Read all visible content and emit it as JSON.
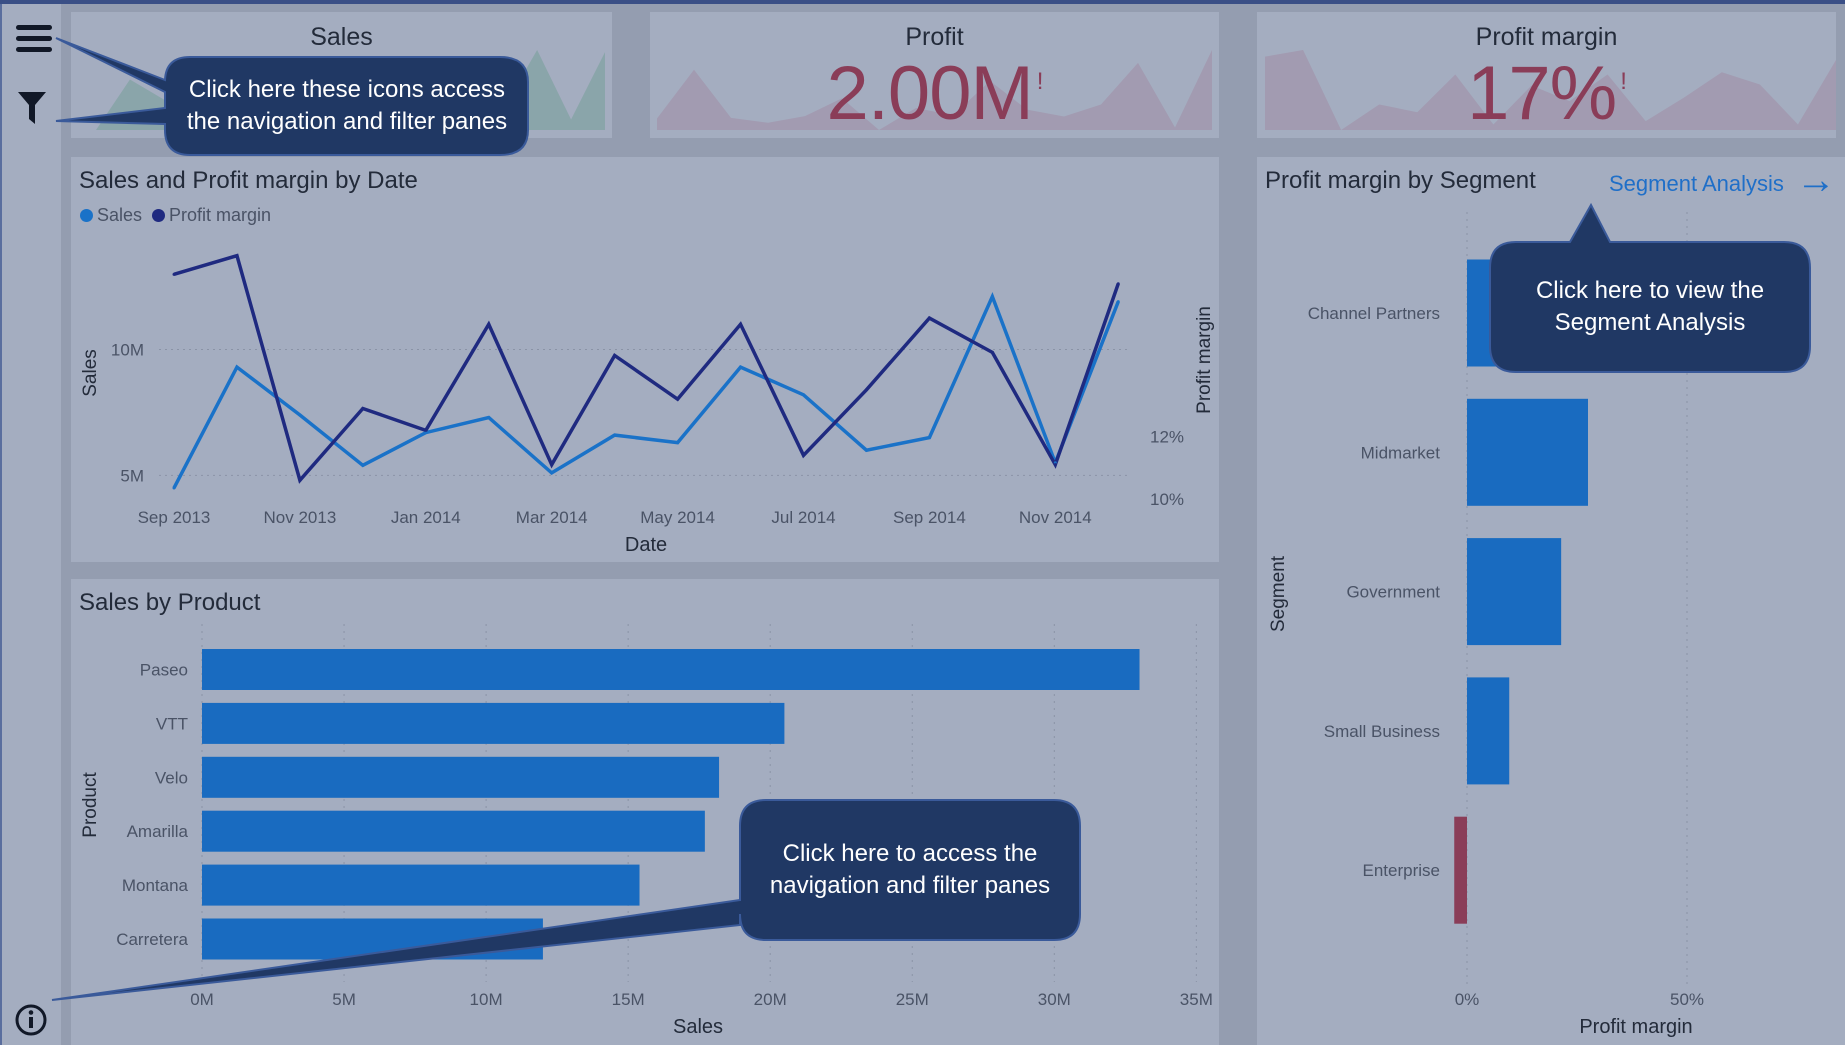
{
  "nav": {
    "menu_icon": "hamburger-menu-icon",
    "filter_icon": "filter-icon",
    "info_icon": "info-icon"
  },
  "kpis": {
    "sales": {
      "title": "Sales",
      "value": ""
    },
    "profit": {
      "title": "Profit",
      "value": "2.00M",
      "alert": "!"
    },
    "profit_margin": {
      "title": "Profit margin",
      "value": "17%",
      "alert": "!"
    }
  },
  "line_panel": {
    "title": "Sales and Profit margin by Date",
    "legend": [
      "Sales",
      "Profit margin"
    ]
  },
  "bar_panel": {
    "title": "Sales by Product"
  },
  "segment_panel": {
    "title": "Profit margin by Segment",
    "link_label": "Segment Analysis",
    "link_icon": "arrow-right-icon"
  },
  "callouts": [
    {
      "text": "Click here these icons access the navigation and filter panes"
    },
    {
      "text": "Click here to view the Segment Analysis"
    },
    {
      "text": "Click here to access the navigation and filter panes"
    }
  ],
  "colors": {
    "sales_line": "#1a72c8",
    "margin_line": "#1f2a80",
    "bar": "#196bc0",
    "negative": "#8a3d58",
    "callout": "#203864"
  },
  "chart_data": [
    {
      "type": "line",
      "x": [
        "Sep 2013",
        "Oct 2013",
        "Nov 2013",
        "Dec 2013",
        "Jan 2014",
        "Feb 2014",
        "Mar 2014",
        "Apr 2014",
        "May 2014",
        "Jun 2014",
        "Jul 2014",
        "Aug 2014",
        "Sep 2014",
        "Oct 2014",
        "Nov 2014",
        "Dec 2014"
      ],
      "x_tick_labels": [
        "Sep 2013",
        "Nov 2013",
        "Jan 2014",
        "Mar 2014",
        "May 2014",
        "Jul 2014",
        "Sep 2014",
        "Nov 2014"
      ],
      "series": [
        {
          "name": "Sales",
          "axis": "left",
          "values": [
            4.5,
            9.3,
            7.4,
            5.4,
            6.7,
            7.3,
            5.1,
            6.6,
            6.3,
            9.3,
            8.2,
            6.0,
            6.5,
            12.1,
            5.5,
            11.9
          ]
        },
        {
          "name": "Profit margin",
          "axis": "right",
          "values": [
            17.2,
            17.8,
            10.6,
            12.9,
            12.2,
            15.6,
            11.1,
            14.6,
            13.2,
            15.6,
            11.4,
            13.5,
            15.8,
            14.7,
            11.1,
            16.9
          ]
        }
      ],
      "xlabel": "Date",
      "ylabel": "Sales",
      "y2label": "Profit margin",
      "y_ticks": [
        "5M",
        "10M"
      ],
      "y2_ticks": [
        "10%",
        "12%"
      ],
      "grid": true,
      "legend": "top-left"
    },
    {
      "type": "bar",
      "orientation": "horizontal",
      "categories": [
        "Paseo",
        "VTT",
        "Velo",
        "Amarilla",
        "Montana",
        "Carretera"
      ],
      "values": [
        33.0,
        20.5,
        18.2,
        17.7,
        15.4,
        12.0
      ],
      "xlabel": "Sales",
      "ylabel": "Product",
      "x_ticks": [
        "0M",
        "5M",
        "10M",
        "15M",
        "20M",
        "25M",
        "30M",
        "35M"
      ],
      "xlim": [
        0,
        35
      ],
      "grid": true
    },
    {
      "type": "bar",
      "orientation": "horizontal",
      "categories": [
        "Channel Partners",
        "Midmarket",
        "Government",
        "Small Business",
        "Enterprise"
      ],
      "values": [
        73,
        27.5,
        21.4,
        9.6,
        -2.9
      ],
      "xlabel": "Profit margin",
      "ylabel": "Segment",
      "x_ticks": [
        "0%",
        "50%"
      ],
      "grid": true
    }
  ]
}
